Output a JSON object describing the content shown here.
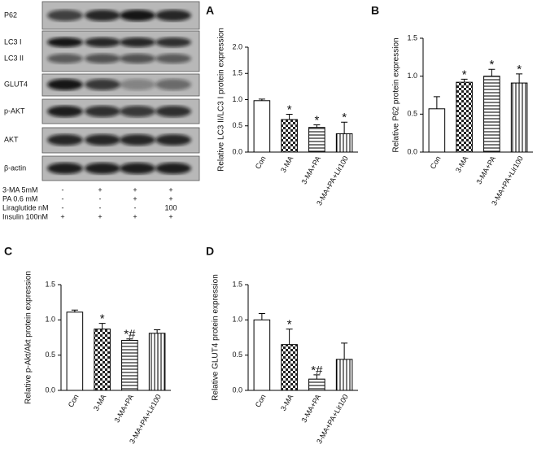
{
  "blot": {
    "bands": [
      "P62",
      "LC3 I",
      "LC3 II",
      "GLUT4",
      "p-AKT",
      "AKT",
      "β-actin"
    ],
    "treatments": [
      {
        "label": "3-MA 5mM",
        "cells": [
          "-",
          "+",
          "+",
          "+"
        ]
      },
      {
        "label": "PA 0.6 mM",
        "cells": [
          "-",
          "-",
          "+",
          "+"
        ]
      },
      {
        "label": "Liraglutide nM",
        "cells": [
          "-",
          "-",
          "-",
          "100"
        ]
      },
      {
        "label": "Insulin 100nM",
        "cells": [
          "+",
          "+",
          "+",
          "+"
        ]
      }
    ]
  },
  "chart_data": [
    {
      "type": "bar",
      "panel": "A",
      "y_label": "Relative LC3 II/LC3 I protein expression",
      "categories": [
        "Con",
        "3-MA",
        "3-MA+PA",
        "3-MA+PA+Lir100"
      ],
      "values": [
        0.98,
        0.62,
        0.47,
        0.35
      ],
      "errors": [
        0.03,
        0.1,
        0.05,
        0.22
      ],
      "annotations": [
        null,
        "*",
        "*",
        "*"
      ],
      "fills": [
        "plain",
        "checker",
        "hlines",
        "vlines"
      ],
      "ylim": [
        0,
        2
      ],
      "yticks": [
        {
          "value": 0,
          "label": "0.0"
        },
        {
          "value": 0.5,
          "label": "0.5"
        },
        {
          "value": 1,
          "label": "1.0"
        },
        {
          "value": 1.5,
          "label": "1.5"
        },
        {
          "value": 2,
          "label": "2.0"
        }
      ]
    },
    {
      "type": "bar",
      "panel": "B",
      "y_label": "Relative P62 protein expression",
      "categories": [
        "Con",
        "3-MA",
        "3-MA+PA",
        "3-MA+PA+Lir100"
      ],
      "values": [
        0.57,
        0.92,
        1.0,
        0.91
      ],
      "errors": [
        0.16,
        0.04,
        0.09,
        0.12
      ],
      "annotations": [
        null,
        "*",
        "*",
        "*"
      ],
      "fills": [
        "plain",
        "checker",
        "hlines",
        "vlines"
      ],
      "ylim": [
        0,
        1.5
      ],
      "yticks": [
        {
          "value": 0,
          "label": "0.0"
        },
        {
          "value": 0.5,
          "label": "0.5"
        },
        {
          "value": 1,
          "label": "1.0"
        },
        {
          "value": 1.5,
          "label": "1.5"
        }
      ]
    },
    {
      "type": "bar",
      "panel": "C",
      "y_label": "Relative p-Akt/Akt protein expression",
      "categories": [
        "Con",
        "3-MA",
        "3-MA+PA",
        "3-MA+PA+Lir100"
      ],
      "values": [
        1.11,
        0.87,
        0.71,
        0.81
      ],
      "errors": [
        0.03,
        0.08,
        0.02,
        0.05
      ],
      "annotations": [
        null,
        "*",
        "*#",
        null
      ],
      "fills": [
        "plain",
        "checker",
        "hlines",
        "vlines"
      ],
      "ylim": [
        0,
        1.5
      ],
      "yticks": [
        {
          "value": 0,
          "label": "0.0"
        },
        {
          "value": 0.5,
          "label": "0.5"
        },
        {
          "value": 1,
          "label": "1.0"
        },
        {
          "value": 1.5,
          "label": "1.5"
        }
      ]
    },
    {
      "type": "bar",
      "panel": "D",
      "y_label": "Relative GLUT4 protein expression",
      "categories": [
        "Con",
        "3-MA",
        "3-MA+PA",
        "3-MA+PA+Lir100"
      ],
      "values": [
        1.0,
        0.65,
        0.16,
        0.44
      ],
      "errors": [
        0.09,
        0.22,
        0.06,
        0.23
      ],
      "annotations": [
        null,
        "*",
        "*#",
        null
      ],
      "fills": [
        "plain",
        "checker",
        "hlines",
        "vlines"
      ],
      "ylim": [
        0,
        1.5
      ],
      "yticks": [
        {
          "value": 0,
          "label": "0.0"
        },
        {
          "value": 0.5,
          "label": "0.5"
        },
        {
          "value": 1,
          "label": "1.0"
        },
        {
          "value": 1.5,
          "label": "1.5"
        }
      ]
    }
  ]
}
